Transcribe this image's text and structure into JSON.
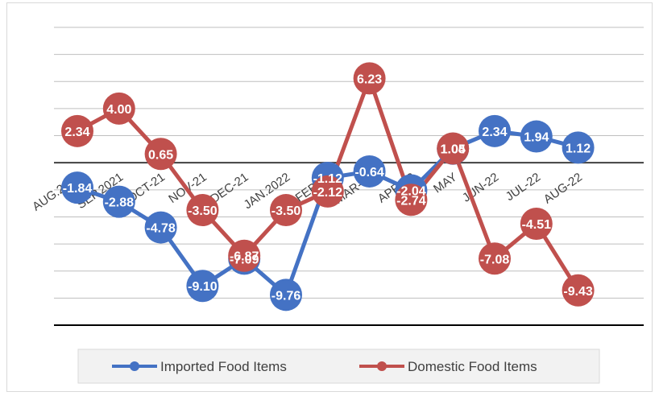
{
  "chart_data": {
    "type": "line",
    "title": "",
    "xlabel": "",
    "ylabel": "",
    "categories": [
      "AUG.2021",
      "SEP.2021",
      "OCT-21",
      "NOV-21",
      "DEC-21",
      "JAN.2022",
      "FEB-22",
      "MAR-22",
      "APR-22",
      "MAY",
      "JUN-22",
      "JUL-22",
      "AUG-22"
    ],
    "ylim": [
      -12,
      10
    ],
    "grid": true,
    "legend_position": "bottom",
    "series": [
      {
        "name": "Imported Food Items",
        "color": "#4472C4",
        "values": [
          -1.84,
          -2.88,
          -4.78,
          -9.1,
          -7.09,
          -9.76,
          -1.12,
          -0.64,
          -2.04,
          1.04,
          2.34,
          1.94,
          1.12
        ],
        "labels": [
          "-1.84",
          "-2.88",
          "-4.78",
          "-9.10",
          "-7.09",
          "-9.76",
          "-1.12",
          "-0.64",
          "-2.04",
          "1.04",
          "2.34",
          "1.94",
          "1.12"
        ]
      },
      {
        "name": "Domestic Food Items",
        "color": "#C0504D",
        "values": [
          2.34,
          4.0,
          0.65,
          -3.5,
          -6.87,
          -3.5,
          -2.12,
          6.23,
          -2.74,
          1.05,
          -7.08,
          -4.51,
          -9.43
        ],
        "labels": [
          "2.34",
          "4.00",
          "0.65",
          "-3.50",
          "-6.87",
          "-3.50",
          "-2.12",
          "6.23",
          "-2.74",
          "1.05",
          "-7.08",
          "-4.51",
          "-9.43"
        ]
      }
    ]
  }
}
